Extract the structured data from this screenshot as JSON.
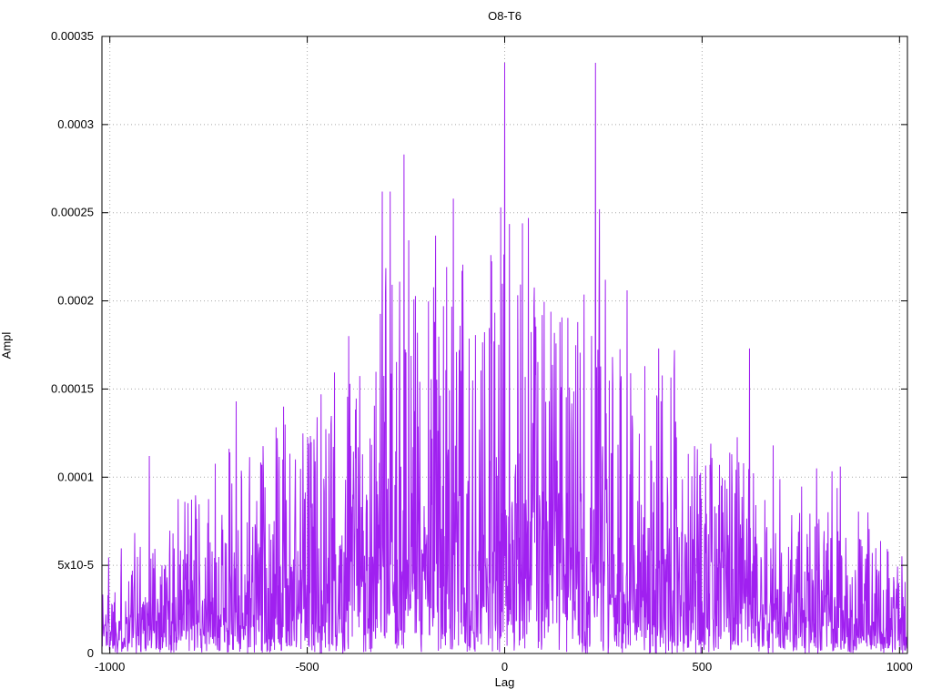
{
  "chart_data": {
    "type": "line",
    "title": "O8-T6",
    "xlabel": "Lag",
    "ylabel": "Ampl",
    "xlim": [
      -1020,
      1020
    ],
    "ylim": [
      0,
      0.00035
    ],
    "x_ticks": [
      -1000,
      -500,
      0,
      500,
      1000
    ],
    "x_tick_labels": [
      "-1000",
      "-500",
      "0",
      "500",
      "1000"
    ],
    "y_ticks": [
      0,
      5e-05,
      0.0001,
      0.00015,
      0.0002,
      0.00025,
      0.0003,
      0.00035
    ],
    "y_tick_labels": [
      "0",
      "5x10-5",
      "0.0001",
      "0.00015",
      "0.0002",
      "0.00025",
      "0.0003",
      "0.00035"
    ],
    "grid": true,
    "legend": "none",
    "line_color": "#a020f0",
    "grid_color": "#a8a8a8",
    "border_color": "#000000",
    "seed": 1337,
    "step": 1,
    "max_envelope": [
      [
        -1020,
        5e-05
      ],
      [
        -1000,
        6e-05
      ],
      [
        -950,
        7e-05
      ],
      [
        -900,
        9.5e-05
      ],
      [
        -850,
        8e-05
      ],
      [
        -800,
        0.0001
      ],
      [
        -750,
        0.000105
      ],
      [
        -700,
        0.000143
      ],
      [
        -650,
        0.000115
      ],
      [
        -600,
        0.000125
      ],
      [
        -550,
        0.00014
      ],
      [
        -500,
        0.000145
      ],
      [
        -450,
        0.00015
      ],
      [
        -400,
        0.00018
      ],
      [
        -350,
        0.00016
      ],
      [
        -300,
        0.00022
      ],
      [
        -250,
        0.00024
      ],
      [
        -200,
        0.00021
      ],
      [
        -150,
        0.00023
      ],
      [
        -100,
        0.00022
      ],
      [
        -50,
        0.00022
      ],
      [
        0,
        0.00025
      ],
      [
        50,
        0.000245
      ],
      [
        100,
        0.0002
      ],
      [
        150,
        0.00019
      ],
      [
        200,
        0.00022
      ],
      [
        250,
        0.00022
      ],
      [
        300,
        0.0002
      ],
      [
        350,
        0.00018
      ],
      [
        400,
        0.000175
      ],
      [
        450,
        0.00016
      ],
      [
        500,
        0.00013
      ],
      [
        550,
        0.00012
      ],
      [
        600,
        0.00013
      ],
      [
        650,
        0.00011
      ],
      [
        700,
        0.00011
      ],
      [
        750,
        0.0001
      ],
      [
        800,
        0.000105
      ],
      [
        850,
        0.000105
      ],
      [
        900,
        9e-05
      ],
      [
        950,
        7e-05
      ],
      [
        1000,
        6e-05
      ],
      [
        1020,
        5.5e-05
      ]
    ],
    "typical_envelope": [
      [
        -1020,
        2e-05
      ],
      [
        -900,
        2.5e-05
      ],
      [
        -800,
        3e-05
      ],
      [
        -700,
        3.5e-05
      ],
      [
        -600,
        4e-05
      ],
      [
        -500,
        4.5e-05
      ],
      [
        -400,
        5.5e-05
      ],
      [
        -300,
        6.5e-05
      ],
      [
        -200,
        7e-05
      ],
      [
        -100,
        7.5e-05
      ],
      [
        0,
        8e-05
      ],
      [
        100,
        7.5e-05
      ],
      [
        200,
        7e-05
      ],
      [
        300,
        6.5e-05
      ],
      [
        400,
        6e-05
      ],
      [
        500,
        5e-05
      ],
      [
        600,
        4.5e-05
      ],
      [
        700,
        3.5e-05
      ],
      [
        800,
        3.5e-05
      ],
      [
        900,
        2.5e-05
      ],
      [
        1000,
        2e-05
      ],
      [
        1020,
        2e-05
      ]
    ],
    "peaks": [
      [
        0,
        0.000335
      ],
      [
        230,
        0.000335
      ],
      [
        -255,
        0.000283
      ],
      [
        -290,
        0.000262
      ],
      [
        -130,
        0.000258
      ],
      [
        -10,
        0.000253
      ],
      [
        240,
        0.000252
      ],
      [
        60,
        0.000247
      ],
      [
        45,
        0.000244
      ],
      [
        -175,
        0.000237
      ],
      [
        -108,
        0.000217
      ],
      [
        255,
        0.000212
      ],
      [
        310,
        0.000206
      ],
      [
        -155,
        0.000197
      ],
      [
        620,
        0.000173
      ],
      [
        390,
        0.000173
      ],
      [
        430,
        0.000172
      ],
      [
        -395,
        0.00018
      ],
      [
        -680,
        0.000143
      ],
      [
        -560,
        0.00014
      ],
      [
        -465,
        0.000147
      ],
      [
        -900,
        0.000112
      ],
      [
        850,
        0.000106
      ],
      [
        790,
        0.000105
      ],
      [
        -310,
        0.000262
      ],
      [
        140,
        0.000188
      ],
      [
        -35,
        0.000226
      ],
      [
        95,
        0.000192
      ],
      [
        575,
        0.000113
      ],
      [
        680,
        0.000118
      ],
      [
        920,
        8e-05
      ]
    ]
  }
}
